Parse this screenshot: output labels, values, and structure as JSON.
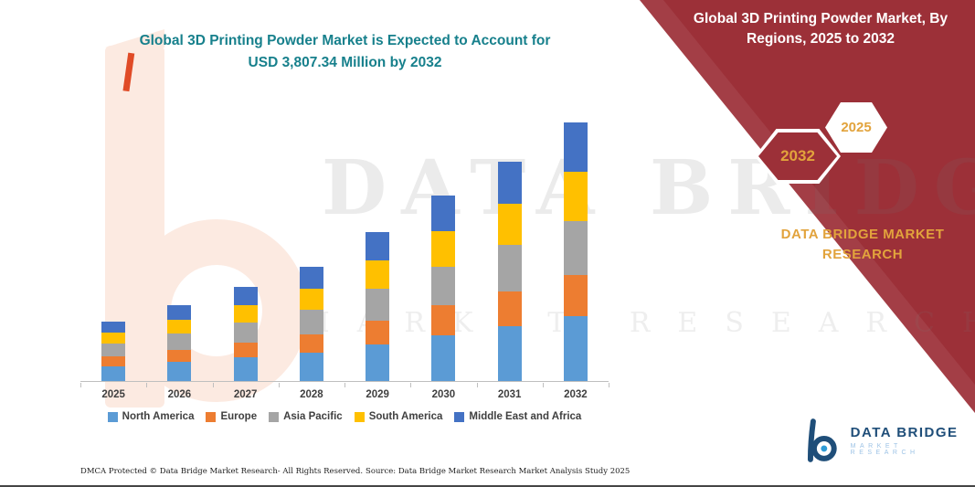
{
  "colors": {
    "banner_red": "#9C3038",
    "title_teal": "#17808C",
    "gold": "#E2A33C",
    "logo_blue": "#1F4E79",
    "axis_gray": "#BFBFBF",
    "label_gray": "#404040"
  },
  "left_header": {
    "line1": "Global 3D Printing Powder Market is Expected to Account for",
    "line2": "USD 3,807.34 Million by 2032"
  },
  "right_panel": {
    "title": "Global 3D Printing Powder Market, By Regions, 2025 to 2032",
    "badge_back": "2032",
    "badge_front": "2025",
    "brand": "DATA BRIDGE MARKET RESEARCH"
  },
  "watermark": {
    "line1": "DATA BRIDGE",
    "line2": "MARKET RESEARCH"
  },
  "footer": {
    "dmca": "DMCA Protected © Data Bridge Market Research-  All Rights Reserved.",
    "source": "Source: Data Bridge Market Research  Market Analysis Study 2025"
  },
  "logo": {
    "name": "DATA BRIDGE",
    "tagline": "MARKET RESEARCH"
  },
  "chart_data": {
    "type": "bar",
    "stacked": true,
    "title": "Global 3D Printing Powder Market is Expected to Account for USD 3,807.34 Million by 2032",
    "unit": "USD Million",
    "categories": [
      "2025",
      "2026",
      "2027",
      "2028",
      "2029",
      "2030",
      "2031",
      "2032"
    ],
    "series": [
      {
        "name": "North America",
        "color": "#5B9BD5",
        "values": [
          220,
          280,
          345,
          420,
          545,
          680,
          805,
          950
        ]
      },
      {
        "name": "Europe",
        "color": "#ED7D31",
        "values": [
          140,
          180,
          220,
          270,
          350,
          435,
          515,
          610
        ]
      },
      {
        "name": "Asia Pacific",
        "color": "#A5A5A5",
        "values": [
          185,
          235,
          290,
          355,
          460,
          575,
          680,
          800
        ]
      },
      {
        "name": "South America",
        "color": "#FFC000",
        "values": [
          165,
          210,
          265,
          320,
          420,
          520,
          615,
          725
        ]
      },
      {
        "name": "Middle East and Africa",
        "color": "#4472C4",
        "values": [
          165,
          210,
          265,
          315,
          415,
          520,
          615,
          722.34
        ]
      }
    ],
    "totals": [
      875,
      1115,
      1385,
      1680,
      2190,
      2730,
      3230,
      3807.34
    ],
    "ylim": [
      0,
      4000
    ],
    "y_axis_visible": false,
    "legend_position": "bottom"
  }
}
